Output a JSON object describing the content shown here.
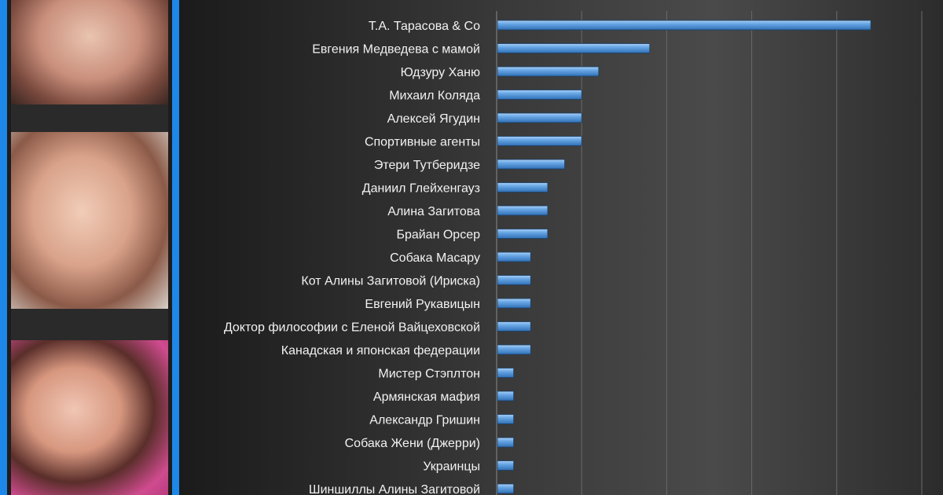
{
  "colors": {
    "bar_fill": "#5b9bd5",
    "bar_highlight": "#9cc8f0",
    "frame_blue": "#1e88e8",
    "text": "#f2f2f2",
    "gridline": "#6a6a6a"
  },
  "images": [
    {
      "name": "portrait-photo-1"
    },
    {
      "name": "portrait-photo-2"
    },
    {
      "name": "portrait-photo-3"
    }
  ],
  "chart_data": {
    "type": "bar",
    "orientation": "horizontal",
    "categories": [
      "Т.А. Тарасова & Co",
      "Евгения Медведева с мамой",
      "Юдзуру Ханю",
      "Михаил Коляда",
      "Алексей Ягудин",
      "Спортивные агенты",
      "Этери Тутберидзе",
      "Даниил Глейхенгауз",
      "Алина Загитова",
      "Брайан Орсер",
      "Собака Масару",
      "Кот Алины Загитовой (Ириска)",
      "Евгений Рукавицын",
      "Доктор философии с Еленой Вайцеховской",
      "Канадская и японская федерации",
      "Мистер Стэплтон",
      "Армянская мафия",
      "Александр Гришин",
      "Собака Жени (Джерри)",
      "Украинцы",
      "Шиншиллы Алины Загитовой"
    ],
    "values": [
      22,
      9,
      6,
      5,
      5,
      5,
      4,
      3,
      3,
      3,
      2,
      2,
      2,
      2,
      2,
      1,
      1,
      1,
      1,
      1,
      1
    ],
    "xlim": [
      0,
      25
    ],
    "grid": true,
    "legend": "none"
  }
}
